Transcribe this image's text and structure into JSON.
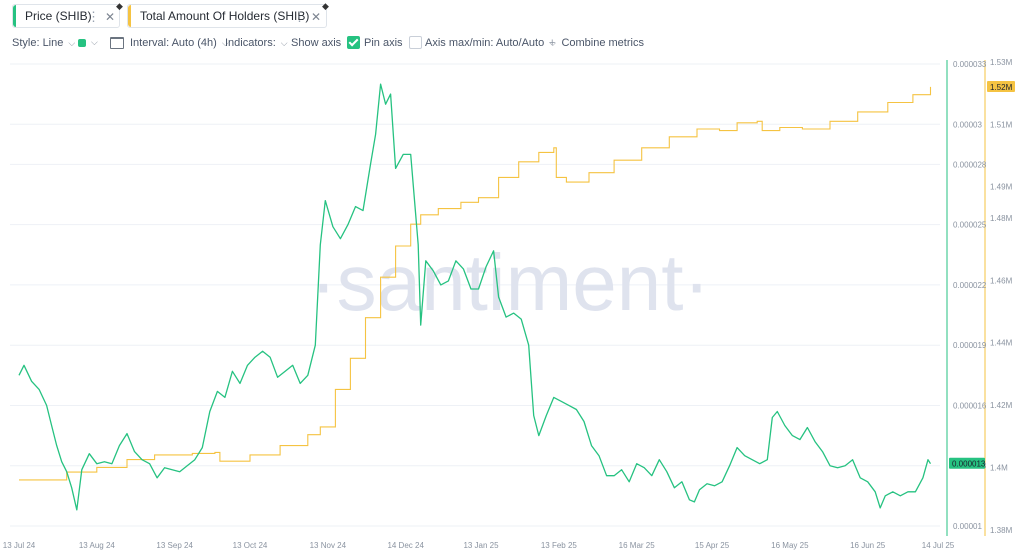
{
  "tabs": [
    {
      "label": "Price (SHIB)",
      "color": "#26c281"
    },
    {
      "label": "Total Amount Of Holders (SHIB)",
      "color": "#f5c342"
    }
  ],
  "toolbar": {
    "style_label": "Style: Line",
    "interval_label": "Interval: Auto (4h)",
    "indicators_label": "Indicators:",
    "show_axis_label": "Show axis",
    "show_axis_checked": true,
    "pin_axis_label": "Pin axis",
    "pin_axis_checked": false,
    "axis_maxmin_label": "Axis max/min: Auto/Auto",
    "combine_label": "Combine metrics",
    "line_color": "#26c281"
  },
  "watermark": "·santiment·",
  "chart_data": {
    "type": "line",
    "x_ticks": [
      "13 Jul 24",
      "13 Aug 24",
      "13 Sep 24",
      "13 Oct 24",
      "13 Nov 24",
      "14 Dec 24",
      "13 Jan 25",
      "13 Feb 25",
      "16 Mar 25",
      "15 Apr 25",
      "16 May 25",
      "16 Jun 25",
      "14 Jul 25"
    ],
    "y_price_ticks": [
      "0.000033",
      "0.00003",
      "0.000028",
      "0.000025",
      "0.000022",
      "0.000019",
      "0.000016",
      "0.000013",
      "0.00001"
    ],
    "y_holders_ticks": [
      "1.53M",
      "1.51M",
      "1.49M",
      "1.48M",
      "1.46M",
      "1.44M",
      "1.42M",
      "1.4M",
      "1.38M"
    ],
    "price_range": [
      9.5e-06,
      3.3e-05
    ],
    "holders_range": [
      1378000,
      1530000
    ],
    "current_price_label": "0.000013",
    "current_holders_label": "1.52M",
    "series": [
      {
        "name": "Price (SHIB)",
        "axis": "left",
        "color": "#26c281",
        "points": [
          [
            "2024-07-13",
            1.75e-05
          ],
          [
            "2024-07-15",
            1.8e-05
          ],
          [
            "2024-07-18",
            1.72e-05
          ],
          [
            "2024-07-21",
            1.68e-05
          ],
          [
            "2024-07-24",
            1.6e-05
          ],
          [
            "2024-07-26",
            1.5e-05
          ],
          [
            "2024-07-28",
            1.4e-05
          ],
          [
            "2024-07-30",
            1.32e-05
          ],
          [
            "2024-08-01",
            1.27e-05
          ],
          [
            "2024-08-03",
            1.19e-05
          ],
          [
            "2024-08-05",
            1.08e-05
          ],
          [
            "2024-08-07",
            1.28e-05
          ],
          [
            "2024-08-10",
            1.36e-05
          ],
          [
            "2024-08-13",
            1.31e-05
          ],
          [
            "2024-08-16",
            1.32e-05
          ],
          [
            "2024-08-19",
            1.31e-05
          ],
          [
            "2024-08-22",
            1.4e-05
          ],
          [
            "2024-08-25",
            1.46e-05
          ],
          [
            "2024-08-28",
            1.37e-05
          ],
          [
            "2024-08-31",
            1.33e-05
          ],
          [
            "2024-09-03",
            1.31e-05
          ],
          [
            "2024-09-06",
            1.24e-05
          ],
          [
            "2024-09-09",
            1.29e-05
          ],
          [
            "2024-09-12",
            1.28e-05
          ],
          [
            "2024-09-15",
            1.27e-05
          ],
          [
            "2024-09-18",
            1.3e-05
          ],
          [
            "2024-09-21",
            1.33e-05
          ],
          [
            "2024-09-24",
            1.39e-05
          ],
          [
            "2024-09-27",
            1.57e-05
          ],
          [
            "2024-09-30",
            1.67e-05
          ],
          [
            "2024-10-03",
            1.64e-05
          ],
          [
            "2024-10-06",
            1.77e-05
          ],
          [
            "2024-10-09",
            1.71e-05
          ],
          [
            "2024-10-12",
            1.8e-05
          ],
          [
            "2024-10-15",
            1.84e-05
          ],
          [
            "2024-10-18",
            1.87e-05
          ],
          [
            "2024-10-21",
            1.84e-05
          ],
          [
            "2024-10-24",
            1.74e-05
          ],
          [
            "2024-10-27",
            1.77e-05
          ],
          [
            "2024-10-30",
            1.8e-05
          ],
          [
            "2024-11-02",
            1.71e-05
          ],
          [
            "2024-11-05",
            1.75e-05
          ],
          [
            "2024-11-08",
            1.9e-05
          ],
          [
            "2024-11-10",
            2.4e-05
          ],
          [
            "2024-11-12",
            2.62e-05
          ],
          [
            "2024-11-15",
            2.49e-05
          ],
          [
            "2024-11-18",
            2.43e-05
          ],
          [
            "2024-11-21",
            2.5e-05
          ],
          [
            "2024-11-24",
            2.59e-05
          ],
          [
            "2024-11-27",
            2.57e-05
          ],
          [
            "2024-11-30",
            2.8e-05
          ],
          [
            "2024-12-02",
            2.95e-05
          ],
          [
            "2024-12-04",
            3.2e-05
          ],
          [
            "2024-12-06",
            3.1e-05
          ],
          [
            "2024-12-08",
            3.15e-05
          ],
          [
            "2024-12-10",
            2.78e-05
          ],
          [
            "2024-12-13",
            2.85e-05
          ],
          [
            "2024-12-16",
            2.85e-05
          ],
          [
            "2024-12-19",
            2.4e-05
          ],
          [
            "2024-12-20",
            2e-05
          ],
          [
            "2024-12-22",
            2.32e-05
          ],
          [
            "2024-12-25",
            2.27e-05
          ],
          [
            "2024-12-28",
            2.2e-05
          ],
          [
            "2024-12-31",
            2.22e-05
          ],
          [
            "2025-01-03",
            2.32e-05
          ],
          [
            "2025-01-06",
            2.28e-05
          ],
          [
            "2025-01-09",
            2.18e-05
          ],
          [
            "2025-01-12",
            2.18e-05
          ],
          [
            "2025-01-15",
            2.29e-05
          ],
          [
            "2025-01-18",
            2.37e-05
          ],
          [
            "2025-01-20",
            2.14e-05
          ],
          [
            "2025-01-23",
            2.04e-05
          ],
          [
            "2025-01-26",
            2.06e-05
          ],
          [
            "2025-01-29",
            2.03e-05
          ],
          [
            "2025-02-01",
            1.9e-05
          ],
          [
            "2025-02-03",
            1.55e-05
          ],
          [
            "2025-02-05",
            1.45e-05
          ],
          [
            "2025-02-08",
            1.55e-05
          ],
          [
            "2025-02-11",
            1.64e-05
          ],
          [
            "2025-02-14",
            1.62e-05
          ],
          [
            "2025-02-17",
            1.6e-05
          ],
          [
            "2025-02-20",
            1.58e-05
          ],
          [
            "2025-02-23",
            1.52e-05
          ],
          [
            "2025-02-26",
            1.4e-05
          ],
          [
            "2025-03-01",
            1.35e-05
          ],
          [
            "2025-03-04",
            1.25e-05
          ],
          [
            "2025-03-07",
            1.25e-05
          ],
          [
            "2025-03-10",
            1.28e-05
          ],
          [
            "2025-03-13",
            1.22e-05
          ],
          [
            "2025-03-16",
            1.31e-05
          ],
          [
            "2025-03-19",
            1.29e-05
          ],
          [
            "2025-03-22",
            1.25e-05
          ],
          [
            "2025-03-25",
            1.33e-05
          ],
          [
            "2025-03-28",
            1.27e-05
          ],
          [
            "2025-03-31",
            1.19e-05
          ],
          [
            "2025-04-03",
            1.22e-05
          ],
          [
            "2025-04-06",
            1.13e-05
          ],
          [
            "2025-04-08",
            1.12e-05
          ],
          [
            "2025-04-10",
            1.18e-05
          ],
          [
            "2025-04-13",
            1.21e-05
          ],
          [
            "2025-04-16",
            1.2e-05
          ],
          [
            "2025-04-19",
            1.22e-05
          ],
          [
            "2025-04-22",
            1.3e-05
          ],
          [
            "2025-04-25",
            1.39e-05
          ],
          [
            "2025-04-28",
            1.35e-05
          ],
          [
            "2025-05-01",
            1.33e-05
          ],
          [
            "2025-05-04",
            1.31e-05
          ],
          [
            "2025-05-07",
            1.33e-05
          ],
          [
            "2025-05-09",
            1.54e-05
          ],
          [
            "2025-05-11",
            1.57e-05
          ],
          [
            "2025-05-14",
            1.5e-05
          ],
          [
            "2025-05-17",
            1.45e-05
          ],
          [
            "2025-05-20",
            1.43e-05
          ],
          [
            "2025-05-23",
            1.49e-05
          ],
          [
            "2025-05-26",
            1.42e-05
          ],
          [
            "2025-05-29",
            1.37e-05
          ],
          [
            "2025-06-01",
            1.3e-05
          ],
          [
            "2025-06-04",
            1.29e-05
          ],
          [
            "2025-06-07",
            1.3e-05
          ],
          [
            "2025-06-10",
            1.33e-05
          ],
          [
            "2025-06-13",
            1.24e-05
          ],
          [
            "2025-06-16",
            1.22e-05
          ],
          [
            "2025-06-19",
            1.17e-05
          ],
          [
            "2025-06-21",
            1.09e-05
          ],
          [
            "2025-06-23",
            1.15e-05
          ],
          [
            "2025-06-26",
            1.17e-05
          ],
          [
            "2025-06-29",
            1.15e-05
          ],
          [
            "2025-07-02",
            1.17e-05
          ],
          [
            "2025-07-05",
            1.17e-05
          ],
          [
            "2025-07-08",
            1.24e-05
          ],
          [
            "2025-07-10",
            1.33e-05
          ],
          [
            "2025-07-11",
            1.31e-05
          ]
        ]
      },
      {
        "name": "Total Amount Of Holders (SHIB)",
        "axis": "right",
        "color": "#f5c342",
        "points": [
          [
            "2024-07-13",
            1.396
          ],
          [
            "2024-08-01",
            1.3985
          ],
          [
            "2024-08-13",
            1.4
          ],
          [
            "2024-08-25",
            1.4025
          ],
          [
            "2024-09-05",
            1.404
          ],
          [
            "2024-09-20",
            1.4045
          ],
          [
            "2024-09-29",
            1.4048
          ],
          [
            "2024-10-01",
            1.402
          ],
          [
            "2024-10-13",
            1.404
          ],
          [
            "2024-10-25",
            1.407
          ],
          [
            "2024-11-05",
            1.4105
          ],
          [
            "2024-11-10",
            1.413
          ],
          [
            "2024-11-16",
            1.425
          ],
          [
            "2024-11-22",
            1.435
          ],
          [
            "2024-11-28",
            1.448
          ],
          [
            "2024-12-04",
            1.461
          ],
          [
            "2024-12-10",
            1.471
          ],
          [
            "2024-12-16",
            1.478
          ],
          [
            "2024-12-20",
            1.481
          ],
          [
            "2024-12-27",
            1.483
          ],
          [
            "2025-01-05",
            1.485
          ],
          [
            "2025-01-12",
            1.4865
          ],
          [
            "2025-01-20",
            1.493
          ],
          [
            "2025-01-28",
            1.498
          ],
          [
            "2025-02-05",
            1.501
          ],
          [
            "2025-02-11",
            1.5025
          ],
          [
            "2025-02-12",
            1.493
          ],
          [
            "2025-02-16",
            1.4915
          ],
          [
            "2025-02-25",
            1.4945
          ],
          [
            "2025-03-07",
            1.4985
          ],
          [
            "2025-03-18",
            1.5025
          ],
          [
            "2025-03-29",
            1.506
          ],
          [
            "2025-04-09",
            1.5085
          ],
          [
            "2025-04-18",
            1.508
          ],
          [
            "2025-04-25",
            1.5105
          ],
          [
            "2025-05-03",
            1.511
          ],
          [
            "2025-05-05",
            1.508
          ],
          [
            "2025-05-12",
            1.509
          ],
          [
            "2025-05-21",
            1.5085
          ],
          [
            "2025-06-01",
            1.511
          ],
          [
            "2025-06-12",
            1.514
          ],
          [
            "2025-06-24",
            1.517
          ],
          [
            "2025-07-04",
            1.5195
          ],
          [
            "2025-07-11",
            1.522
          ]
        ]
      }
    ]
  }
}
